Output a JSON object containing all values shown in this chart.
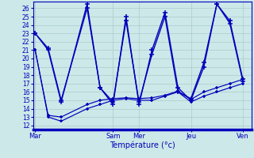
{
  "xlabel": "Température (°c)",
  "background_color": "#cce8e8",
  "grid_color": "#aacccc",
  "line_color": "#0000bb",
  "tick_color": "#0000bb",
  "spine_color": "#0000bb",
  "ylim": [
    11.5,
    26.8
  ],
  "xlim": [
    -1,
    100
  ],
  "yticks": [
    12,
    13,
    14,
    15,
    16,
    17,
    18,
    19,
    20,
    21,
    22,
    23,
    24,
    25,
    26
  ],
  "day_labels": [
    "Mar",
    "Sam",
    "Mer",
    "Jeu",
    "Ven"
  ],
  "day_positions": [
    0,
    36,
    48,
    72,
    96
  ],
  "series": [
    {
      "x": [
        0,
        6,
        12,
        24,
        30,
        36,
        42,
        48,
        54,
        60,
        66,
        72,
        78,
        84,
        90,
        96
      ],
      "y": [
        23,
        21,
        14.8,
        26.5,
        16.5,
        14.5,
        25.0,
        14.5,
        21.0,
        25.5,
        16.5,
        15.0,
        19.0,
        26.5,
        24.5,
        17.5
      ]
    },
    {
      "x": [
        0,
        6,
        12,
        24,
        30,
        36,
        42,
        48,
        54,
        60,
        66,
        72,
        78,
        84,
        90,
        96
      ],
      "y": [
        23,
        21.2,
        15.0,
        26.0,
        16.5,
        14.8,
        24.5,
        14.8,
        20.5,
        25.0,
        16.0,
        15.2,
        19.5,
        26.5,
        24.2,
        17.3
      ]
    },
    {
      "x": [
        0,
        6,
        12,
        24,
        30,
        36,
        42,
        48,
        54,
        60,
        66,
        72,
        78,
        84,
        90,
        96
      ],
      "y": [
        21,
        13.0,
        12.5,
        14.0,
        14.5,
        15.0,
        15.2,
        15.0,
        15.0,
        15.5,
        16.0,
        14.8,
        15.5,
        16.0,
        16.5,
        17.0
      ]
    },
    {
      "x": [
        0,
        6,
        12,
        24,
        30,
        36,
        42,
        48,
        54,
        60,
        66,
        72,
        78,
        84,
        90,
        96
      ],
      "y": [
        21,
        13.2,
        13.0,
        14.5,
        15.0,
        15.2,
        15.3,
        15.2,
        15.3,
        15.6,
        16.1,
        15.1,
        16.0,
        16.5,
        17.0,
        17.5
      ]
    }
  ]
}
